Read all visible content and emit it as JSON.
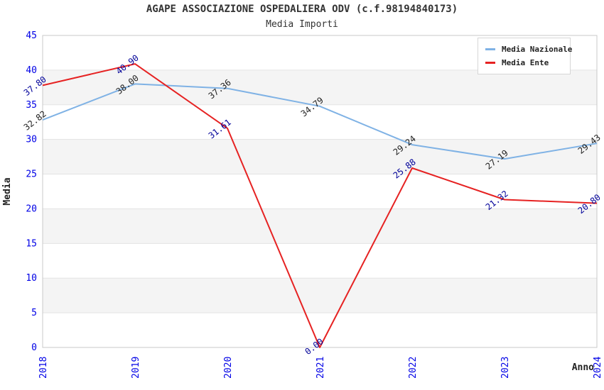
{
  "title": "AGAPE ASSOCIAZIONE OSPEDALIERA ODV (c.f.98194840173)",
  "subtitle": "Media Importi",
  "chart_data": {
    "type": "line",
    "x": [
      "2018",
      "2019",
      "2020",
      "2021",
      "2022",
      "2023",
      "2024"
    ],
    "series": [
      {
        "name": "Media Nazionale",
        "color": "#7fb2e5",
        "label_color": "#222222",
        "values": [
          32.82,
          38.0,
          37.36,
          34.79,
          29.24,
          27.19,
          29.43
        ]
      },
      {
        "name": "Media Ente",
        "color": "#e62222",
        "label_color": "#000099",
        "values": [
          37.8,
          40.9,
          31.61,
          0.0,
          25.88,
          21.32,
          20.8
        ]
      }
    ],
    "xlabel": "Anno",
    "ylabel": "Media",
    "ylim": [
      0,
      45
    ],
    "ytick_step": 5,
    "yticks": [
      0,
      5,
      10,
      15,
      20,
      25,
      30,
      35,
      40,
      45
    ],
    "legend_position": "top-right",
    "grid": true,
    "point_label_decimals": 2,
    "tick_color": "#0000e6",
    "band_color": "#f4f4f4",
    "gridline_color": "#e3e3e3",
    "border_color": "#c9c9c9",
    "axis_title_color": "#222222"
  }
}
